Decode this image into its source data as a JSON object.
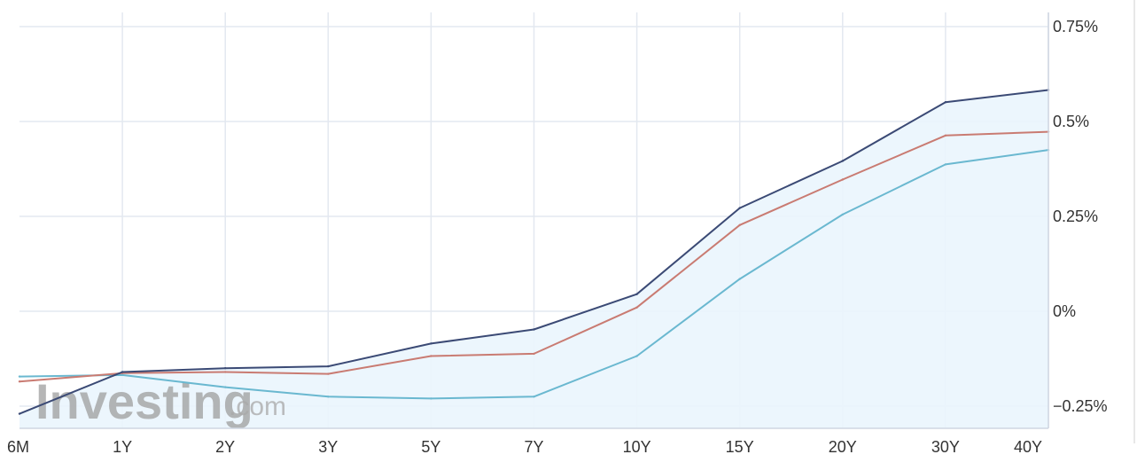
{
  "chart_data": {
    "type": "line",
    "categories": [
      "6M",
      "1Y",
      "2Y",
      "3Y",
      "5Y",
      "7Y",
      "10Y",
      "15Y",
      "20Y",
      "30Y",
      "40Y"
    ],
    "y_ticks": [
      {
        "value": 0.75,
        "label": "0.75%"
      },
      {
        "value": 0.5,
        "label": "0.5%"
      },
      {
        "value": 0.25,
        "label": "0.25%"
      },
      {
        "value": 0,
        "label": "0%"
      },
      {
        "value": -0.25,
        "label": "−0.25%"
      }
    ],
    "ylim": [
      -0.31,
      0.76
    ],
    "series": [
      {
        "color": "#3b4a75",
        "fill": "#eaf5fd",
        "values": [
          -0.27,
          -0.16,
          -0.15,
          -0.145,
          -0.085,
          -0.048,
          0.045,
          0.272,
          0.396,
          0.551,
          0.583
        ]
      },
      {
        "color": "#c97b72",
        "values": [
          -0.185,
          -0.163,
          -0.16,
          -0.165,
          -0.118,
          -0.112,
          0.01,
          0.227,
          0.347,
          0.463,
          0.473
        ]
      },
      {
        "color": "#6ab8d0",
        "values": [
          -0.172,
          -0.168,
          -0.2,
          -0.225,
          -0.23,
          -0.225,
          -0.118,
          0.085,
          0.255,
          0.387,
          0.425
        ]
      }
    ],
    "grid": true,
    "y_axis_position": "right"
  },
  "watermark": {
    "brand": "Investing",
    "suffix": ".com"
  }
}
